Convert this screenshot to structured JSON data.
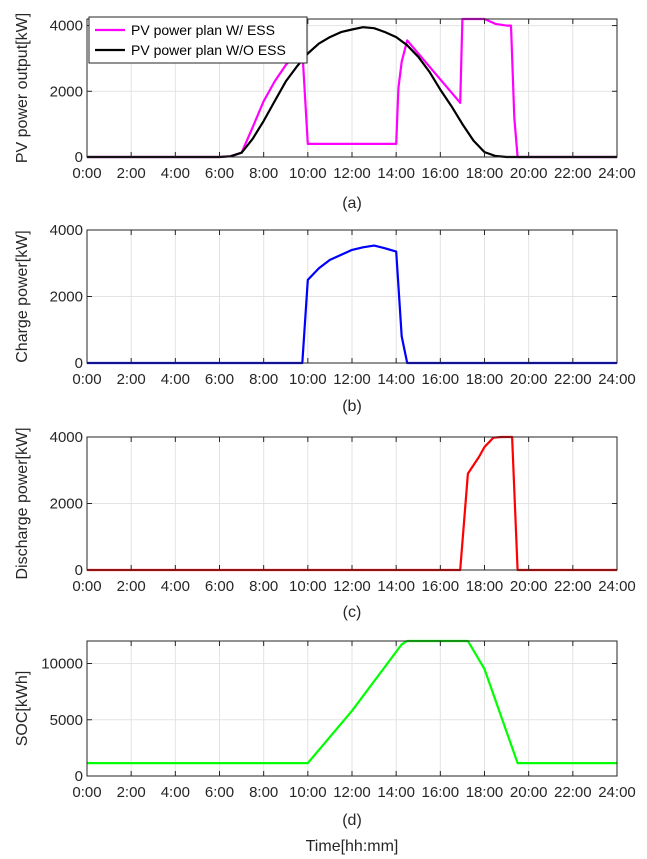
{
  "chart_data": [
    {
      "type": "line",
      "ylabel": "PV power output[kW]",
      "caption": "(a)",
      "xlim": [
        0,
        24
      ],
      "ylim": [
        0,
        4200
      ],
      "yticks": [
        0,
        2000,
        4000
      ],
      "grid": true,
      "legend_position": "top-left",
      "series": [
        {
          "name": "PV power plan W/ ESS",
          "color": "#ff00ff",
          "x": [
            0,
            5,
            6,
            6.5,
            7,
            7.5,
            8,
            8.5,
            9,
            9.5,
            9.75,
            10,
            11,
            12,
            13,
            14,
            14.1,
            14.25,
            14.5,
            16.9,
            17,
            17.5,
            18,
            18.5,
            19,
            19.2,
            19.35,
            19.5,
            20,
            22,
            24
          ],
          "y": [
            0,
            0,
            0,
            20,
            130,
            900,
            1700,
            2300,
            2800,
            3150,
            3250,
            400,
            400,
            400,
            400,
            400,
            2100,
            2900,
            3550,
            1650,
            4200,
            4200,
            4200,
            4050,
            4000,
            4000,
            1200,
            0,
            0,
            0,
            0
          ]
        },
        {
          "name": "PV power plan W/O ESS",
          "color": "#000000",
          "x": [
            0,
            5,
            6,
            6.5,
            7,
            7.5,
            8,
            8.5,
            9,
            9.5,
            10,
            10.5,
            11,
            11.5,
            12,
            12.5,
            13,
            13.5,
            14,
            14.5,
            15,
            15.5,
            16,
            16.5,
            17,
            17.5,
            18,
            18.5,
            19,
            19.5,
            20,
            22,
            24
          ],
          "y": [
            0,
            0,
            0,
            20,
            130,
            550,
            1100,
            1700,
            2300,
            2750,
            3150,
            3450,
            3650,
            3800,
            3880,
            3950,
            3920,
            3800,
            3650,
            3400,
            3050,
            2600,
            2050,
            1550,
            1000,
            500,
            150,
            30,
            0,
            0,
            0,
            0,
            0
          ]
        }
      ]
    },
    {
      "type": "line",
      "ylabel": "Charge power[kW]",
      "caption": "(b)",
      "xlim": [
        0,
        24
      ],
      "ylim": [
        0,
        4000
      ],
      "yticks": [
        0,
        2000,
        4000
      ],
      "grid": true,
      "series": [
        {
          "color": "#0000ff",
          "x": [
            0,
            9.75,
            10,
            10.5,
            11,
            11.5,
            12,
            12.5,
            13,
            13.5,
            14,
            14.25,
            14.5,
            24
          ],
          "y": [
            0,
            0,
            2500,
            2850,
            3100,
            3250,
            3400,
            3480,
            3530,
            3450,
            3350,
            800,
            0,
            0
          ]
        }
      ]
    },
    {
      "type": "line",
      "ylabel": "Discharge power[kW]",
      "caption": "(c)",
      "xlim": [
        0,
        24
      ],
      "ylim": [
        0,
        4000
      ],
      "yticks": [
        0,
        2000,
        4000
      ],
      "grid": true,
      "series": [
        {
          "color": "#ff0000",
          "x": [
            0,
            16.9,
            17.25,
            17.75,
            18,
            18.4,
            18.75,
            19.25,
            19.5,
            24
          ],
          "y": [
            0,
            0,
            2900,
            3400,
            3700,
            3980,
            4000,
            4000,
            0,
            0
          ]
        }
      ]
    },
    {
      "type": "line",
      "ylabel": "SOC[kWh]",
      "caption": "(d)",
      "xlabel": "Time[hh:mm]",
      "xlim": [
        0,
        24
      ],
      "ylim": [
        0,
        12000
      ],
      "yticks": [
        0,
        5000,
        10000
      ],
      "grid": true,
      "series": [
        {
          "color": "#00ff00",
          "x": [
            0,
            10,
            12,
            14.25,
            14.5,
            17.25,
            18,
            19.5,
            24
          ],
          "y": [
            1150,
            1150,
            5800,
            11700,
            12000,
            12000,
            9500,
            1150,
            1150
          ]
        }
      ]
    }
  ],
  "xtick_labels": [
    "0:00",
    "2:00",
    "4:00",
    "6:00",
    "8:00",
    "10:00",
    "12:00",
    "14:00",
    "16:00",
    "18:00",
    "20:00",
    "22:00",
    "24:00"
  ]
}
